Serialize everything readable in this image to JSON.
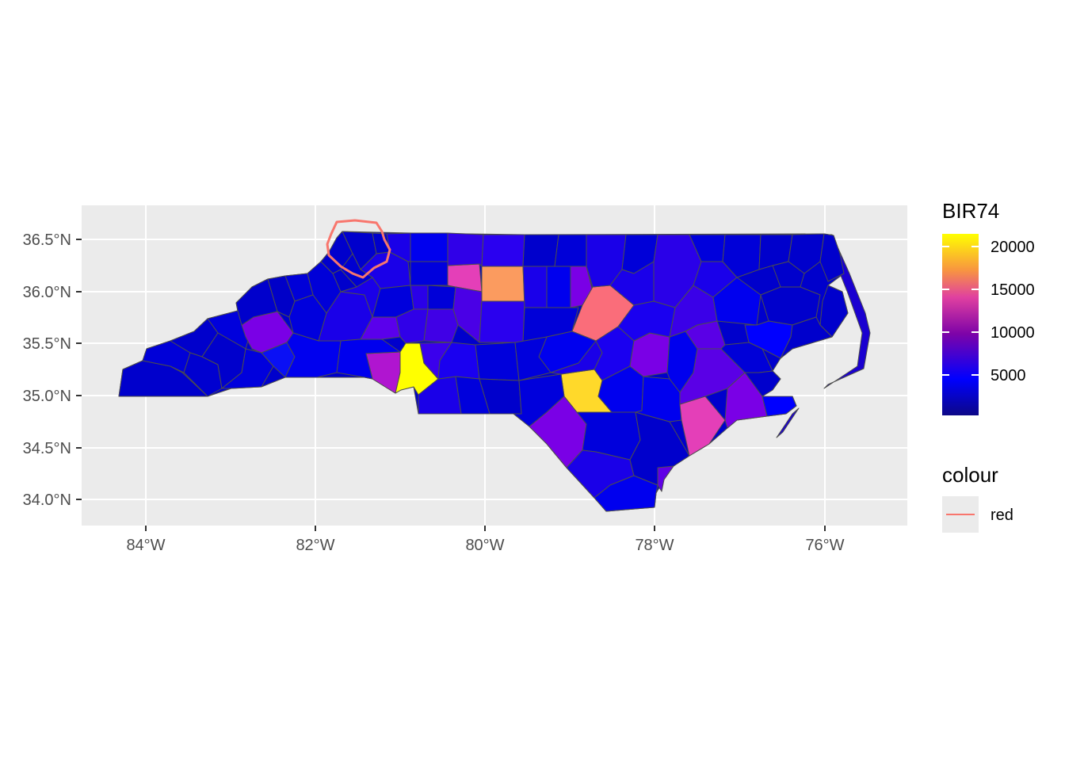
{
  "map": {
    "x_axis_ticks": [
      "84°W",
      "82°W",
      "80°W",
      "78°W",
      "76°W"
    ],
    "y_axis_ticks": [
      "36.5°N",
      "36.0°N",
      "35.5°N",
      "35.0°N",
      "34.5°N",
      "34.0°N"
    ],
    "fill_legend": {
      "title": "BIR74",
      "ticks": [
        "20000",
        "15000",
        "10000",
        "5000"
      ],
      "gradient_colors": [
        "#0d0887",
        "#0000ff",
        "#7e03a8",
        "#cc4778",
        "#f89540",
        "#ffff00"
      ]
    },
    "colour_legend": {
      "title": "colour",
      "entries": [
        {
          "label": "red",
          "color": "#f8766d"
        }
      ]
    },
    "colors": {
      "panel_background": "#ebebeb",
      "grid_line": "#ffffff",
      "county_border": "#4d4d4d",
      "highlight_outline": "#f8766d",
      "low": "#0000cc",
      "mid_low": "#1a00f0",
      "mid": "#7a00e6",
      "purple_pink": "#b015d0",
      "pink": "#e43fb8",
      "salmon": "#fa6d7a",
      "orange": "#fb9b5f",
      "gold": "#ffd92a",
      "yellow": "#ffff00"
    }
  }
}
